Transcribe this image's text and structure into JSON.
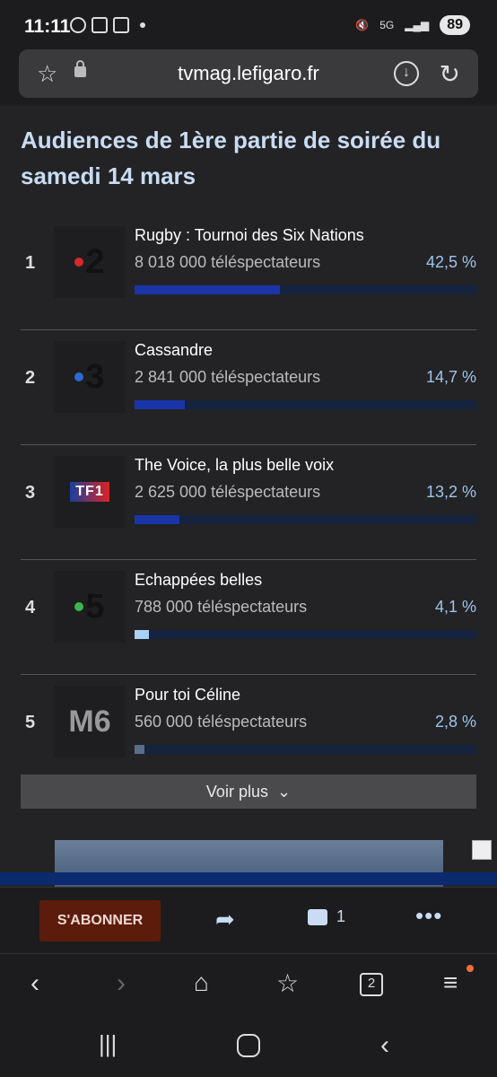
{
  "status_bar": {
    "time": "11:11",
    "network": "5G",
    "battery": "89"
  },
  "url_bar": {
    "url": "tvmag.lefigaro.fr"
  },
  "page": {
    "title": "Audiences de 1ère partie de soirée du samedi 14 mars",
    "rows": [
      {
        "rank": "1",
        "channel": "France 2",
        "logo_text": "2",
        "dot_color": "#d42a2a",
        "program": "Rugby : Tournoi des Six Nations",
        "viewers": "8 018 000 téléspectateurs",
        "percent": "42,5 %",
        "share": 42.5,
        "bar_color": "#1a35a8"
      },
      {
        "rank": "2",
        "channel": "France 3",
        "logo_text": "3",
        "dot_color": "#2a6ad4",
        "program": "Cassandre",
        "viewers": "2 841 000 téléspectateurs",
        "percent": "14,7 %",
        "share": 14.7,
        "bar_color": "#1a35a8"
      },
      {
        "rank": "3",
        "channel": "TF1",
        "logo_text": "TF1",
        "dot_color": "",
        "program": "The Voice, la plus belle voix",
        "viewers": "2 625 000 téléspectateurs",
        "percent": "13,2 %",
        "share": 13.2,
        "bar_color": "#1a35a8"
      },
      {
        "rank": "4",
        "channel": "France 5",
        "logo_text": "5",
        "dot_color": "#3fb34a",
        "program": "Echappées belles",
        "viewers": "788 000 téléspectateurs",
        "percent": "4,1 %",
        "share": 4.1,
        "bar_color": "#a9d0f5"
      },
      {
        "rank": "5",
        "channel": "M6",
        "logo_text": "M6",
        "dot_color": "",
        "program": "Pour toi Céline",
        "viewers": "560 000 téléspectateurs",
        "percent": "2,8 %",
        "share": 2.8,
        "bar_color": "#5a6e88"
      }
    ],
    "voir_plus": "Voir plus"
  },
  "action_bar": {
    "subscribe": "S'ABONNER",
    "comment_count": "1"
  },
  "browser_nav": {
    "tab_count": "2"
  }
}
